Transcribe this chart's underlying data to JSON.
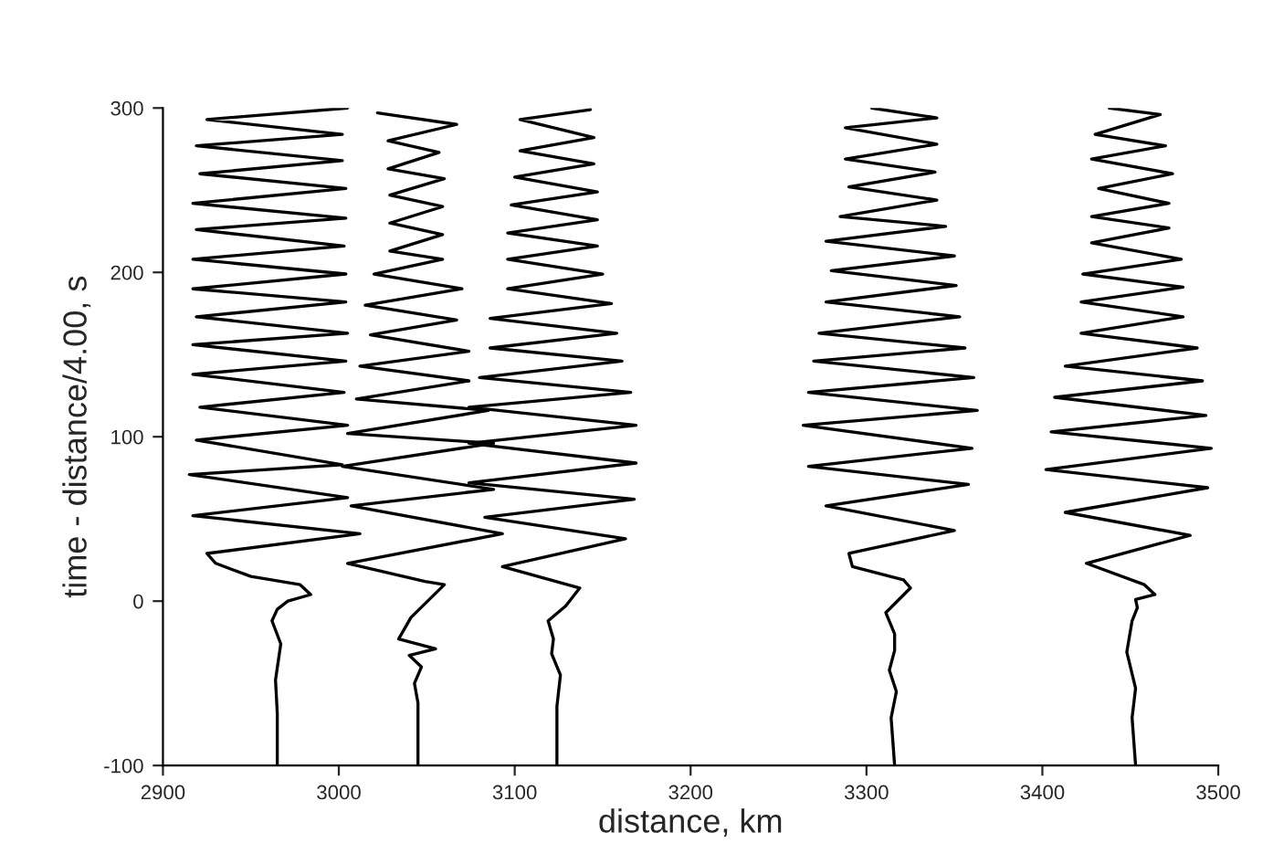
{
  "chart_data": {
    "type": "line",
    "xlabel": "distance, km",
    "ylabel": "time - distance/4.00, s",
    "xlim": [
      2900,
      3500
    ],
    "xticks": [
      2900,
      3000,
      3100,
      3200,
      3300,
      3400,
      3500
    ],
    "ylim": [
      -100,
      300
    ],
    "yticks": [
      -100,
      0,
      100,
      200,
      300
    ],
    "grid": false,
    "legend": false,
    "marker": "none",
    "line_style": "solid",
    "series": [
      {
        "color": "#000000",
        "x": [
          2965,
          2965,
          2964,
          2967,
          2962,
          2965,
          2971,
          2984,
          2978,
          2950,
          2930,
          2925,
          3012,
          2917,
          3005,
          2915,
          3002,
          2919,
          3005,
          2921,
          3003,
          2917,
          3004,
          2917,
          3005,
          2919,
          3004,
          2917,
          3004,
          2917,
          3003,
          2919,
          3004,
          2917,
          3004,
          2921,
          3002,
          2919,
          3002,
          2925,
          3005
        ],
        "values": [
          -100,
          -68,
          -48,
          -26,
          -12,
          -5,
          0,
          4,
          10,
          15,
          23,
          29,
          41,
          52,
          63,
          77,
          83,
          98,
          107,
          118,
          127,
          138,
          146,
          156,
          163,
          173,
          182,
          190,
          199,
          208,
          216,
          226,
          233,
          242,
          251,
          260,
          268,
          277,
          284,
          293,
          300
        ]
      },
      {
        "color": "#000000",
        "x": [
          3045,
          3045,
          3043,
          3047,
          3040,
          3055,
          3034,
          3041,
          3060,
          3049,
          3005,
          3093,
          3007,
          3088,
          3002,
          3088,
          3005,
          3085,
          3010,
          3074,
          3012,
          3074,
          3018,
          3067,
          3015,
          3070,
          3020,
          3059,
          3029,
          3059,
          3029,
          3059,
          3029,
          3060,
          3028,
          3057,
          3028,
          3067,
          3022
        ],
        "values": [
          -100,
          -62,
          -50,
          -40,
          -33,
          -29,
          -23,
          -10,
          10,
          12,
          23,
          41,
          58,
          68,
          82,
          96,
          102,
          116,
          123,
          134,
          143,
          152,
          162,
          171,
          180,
          190,
          199,
          208,
          213,
          223,
          230,
          240,
          247,
          257,
          263,
          273,
          280,
          290,
          297
        ]
      },
      {
        "color": "#000000",
        "x": [
          3124,
          3124,
          3126,
          3121,
          3122,
          3119,
          3129,
          3137,
          3093,
          3163,
          3083,
          3168,
          3074,
          3169,
          3074,
          3169,
          3074,
          3166,
          3080,
          3161,
          3086,
          3158,
          3086,
          3155,
          3096,
          3150,
          3096,
          3147,
          3096,
          3147,
          3098,
          3147,
          3100,
          3145,
          3103,
          3145,
          3103,
          3143
        ],
        "values": [
          -100,
          -64,
          -45,
          -32,
          -23,
          -12,
          -3,
          8,
          21,
          38,
          51,
          62,
          72,
          84,
          96,
          107,
          118,
          127,
          136,
          146,
          154,
          163,
          172,
          181,
          190,
          199,
          208,
          216,
          224,
          232,
          241,
          249,
          258,
          266,
          274,
          282,
          293,
          299
        ]
      },
      {
        "color": "#000000",
        "x": [
          3316,
          3314,
          3317,
          3313,
          3316,
          3316,
          3311,
          3325,
          3321,
          3292,
          3290,
          3350,
          3277,
          3358,
          3267,
          3360,
          3264,
          3363,
          3267,
          3361,
          3270,
          3356,
          3273,
          3353,
          3277,
          3351,
          3280,
          3350,
          3277,
          3345,
          3285,
          3340,
          3290,
          3339,
          3288,
          3340,
          3288,
          3340,
          3303
        ],
        "values": [
          -100,
          -71,
          -55,
          -42,
          -30,
          -20,
          -7,
          8,
          13,
          21,
          29,
          43,
          58,
          71,
          82,
          93,
          107,
          116,
          127,
          136,
          146,
          154,
          163,
          173,
          182,
          192,
          201,
          210,
          219,
          228,
          234,
          244,
          252,
          261,
          269,
          278,
          288,
          294,
          300
        ]
      },
      {
        "color": "#000000",
        "x": [
          3453,
          3451,
          3453,
          3448,
          3451,
          3454,
          3453,
          3464,
          3458,
          3425,
          3484,
          3413,
          3494,
          3402,
          3496,
          3405,
          3493,
          3407,
          3491,
          3413,
          3488,
          3422,
          3480,
          3422,
          3480,
          3423,
          3479,
          3428,
          3472,
          3428,
          3472,
          3432,
          3474,
          3428,
          3470,
          3430,
          3467,
          3438
        ],
        "values": [
          -100,
          -71,
          -53,
          -31,
          -12,
          -4,
          1,
          4,
          10,
          23,
          40,
          54,
          69,
          80,
          93,
          103,
          113,
          124,
          134,
          143,
          154,
          163,
          173,
          182,
          191,
          199,
          208,
          218,
          227,
          234,
          242,
          251,
          260,
          269,
          277,
          284,
          296,
          300
        ]
      }
    ]
  }
}
